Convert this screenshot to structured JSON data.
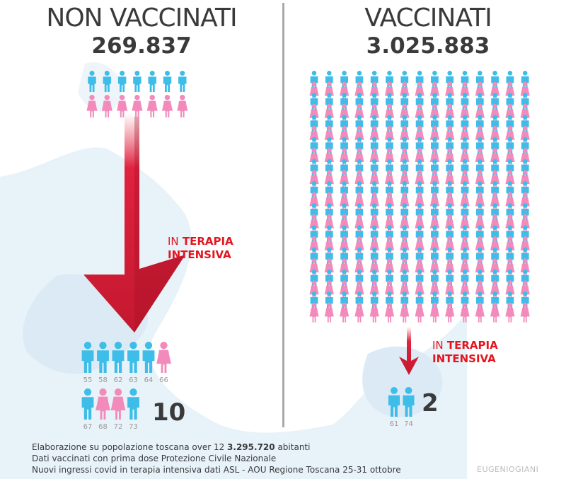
{
  "colors": {
    "male": "#3dbde8",
    "female": "#f28bbb",
    "accent": "#e4151f",
    "arrow": "#d6203a",
    "map": "#e6f1f8"
  },
  "left": {
    "title": "NON VACCINATI",
    "count": "269.837",
    "label_in": "IN",
    "label_terapia": "TERAPIA",
    "label_intensiva": "INTENSIVA",
    "patients_total": "10",
    "patients_row1": [
      {
        "age": "55",
        "gender": "male"
      },
      {
        "age": "58",
        "gender": "male"
      },
      {
        "age": "62",
        "gender": "male"
      },
      {
        "age": "63",
        "gender": "male"
      },
      {
        "age": "64",
        "gender": "male"
      },
      {
        "age": "66",
        "gender": "female"
      }
    ],
    "patients_row2": [
      {
        "age": "67",
        "gender": "male"
      },
      {
        "age": "68",
        "gender": "female"
      },
      {
        "age": "72",
        "gender": "female"
      },
      {
        "age": "73",
        "gender": "male"
      }
    ]
  },
  "right": {
    "title": "VACCINATI",
    "count": "3.025.883",
    "label_in": "IN",
    "label_terapia": "TERAPIA",
    "label_intensiva": "INTENSIVA",
    "patients_total": "2",
    "patients": [
      {
        "age": "61",
        "gender": "male"
      },
      {
        "age": "74",
        "gender": "male"
      }
    ]
  },
  "footnotes": {
    "line1_prefix": "Elaborazione su popolazione toscana over 12",
    "line1_value": "3.295.720",
    "line1_suffix": "abitanti",
    "line2": "Dati vaccinati con prima dose Protezione Civile Nazionale",
    "line3": "Nuovi ingressi covid in terapia intensiva dati ASL - AOU Regione Toscana 25-31 ottobre"
  },
  "credit": "EUGENIOGIANI"
}
